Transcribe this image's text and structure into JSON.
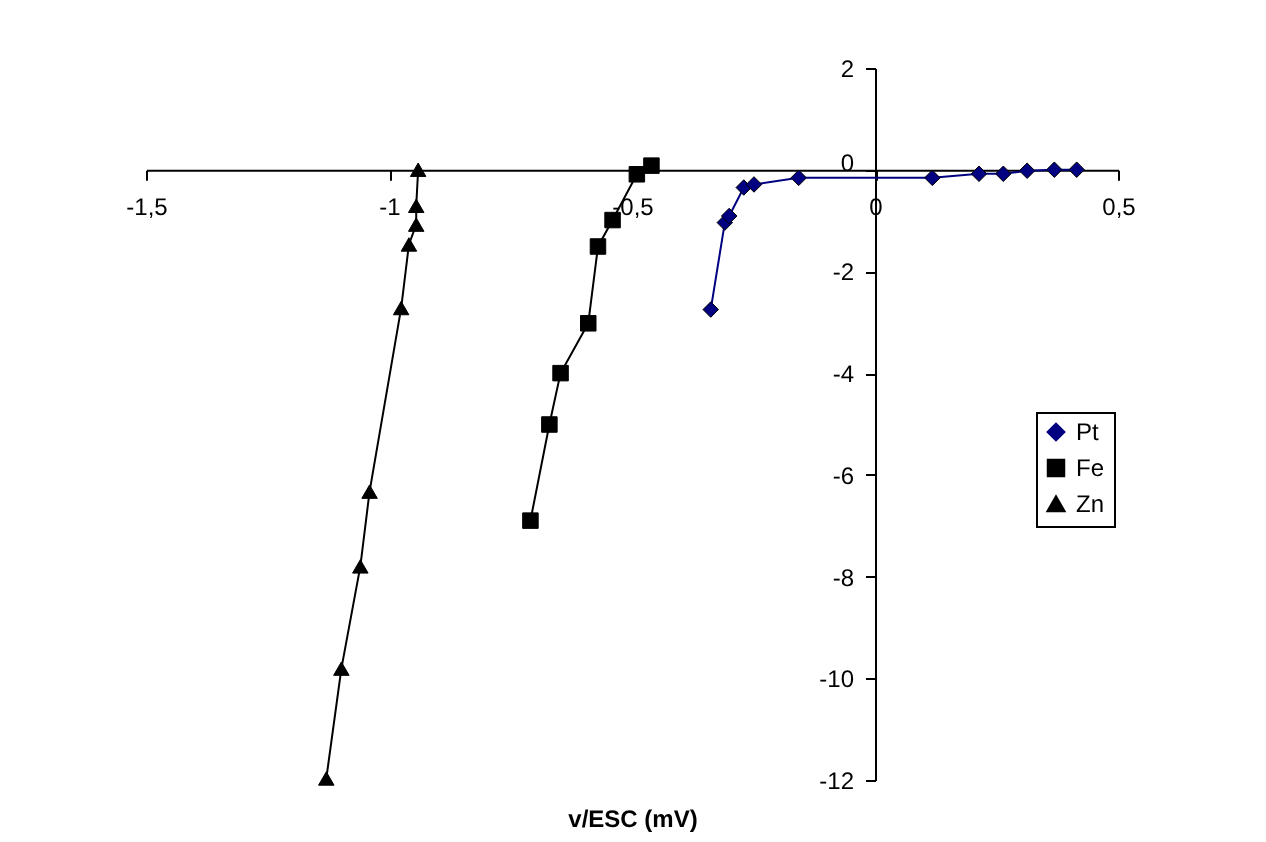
{
  "chart_data": {
    "type": "line",
    "xlabel": "v/ESC (mV)",
    "xlim": [
      -1.5,
      0.5
    ],
    "xticks": [
      {
        "value": -1.5,
        "label": "-1,5"
      },
      -1,
      {
        "value": -0.5,
        "label": "-0,5"
      },
      0,
      {
        "value": 0.5,
        "label": "0,5"
      }
    ],
    "ylim": [
      -12,
      2
    ],
    "yticks": [
      -12,
      -10,
      -8,
      -6,
      -4,
      -2,
      0,
      2
    ],
    "grid": false,
    "legend": "right",
    "line_style": "solid",
    "series": [
      {
        "name": "Pt",
        "color": "#000080",
        "marker": "diamond",
        "x": [
          -0.338,
          -0.309,
          -0.3,
          -0.27,
          -0.249,
          -0.157,
          0.118,
          0.214,
          0.264,
          0.313,
          0.369,
          0.415
        ],
        "values": [
          -2.75,
          -1.04,
          -0.91,
          -0.35,
          -0.29,
          -0.16,
          -0.16,
          -0.08,
          -0.08,
          -0.02,
          0,
          0
        ]
      },
      {
        "name": "Fe",
        "color": "#000000",
        "marker": "square",
        "x": [
          -0.709,
          -0.67,
          -0.647,
          -0.59,
          -0.57,
          -0.54,
          -0.49,
          -0.46
        ],
        "values": [
          -6.9,
          -5.01,
          -4.0,
          -3.02,
          -1.51,
          -0.99,
          -0.09,
          0.08
        ]
      },
      {
        "name": "Zn",
        "color": "#000000",
        "marker": "triangle",
        "x": [
          -1.129,
          -1.098,
          -1.059,
          -1.04,
          -0.975,
          -0.959,
          -0.944,
          -0.944,
          -0.94
        ],
        "values": [
          -11.97,
          -9.81,
          -7.8,
          -6.33,
          -2.72,
          -1.47,
          -1.08,
          -0.71,
          0
        ]
      }
    ]
  }
}
